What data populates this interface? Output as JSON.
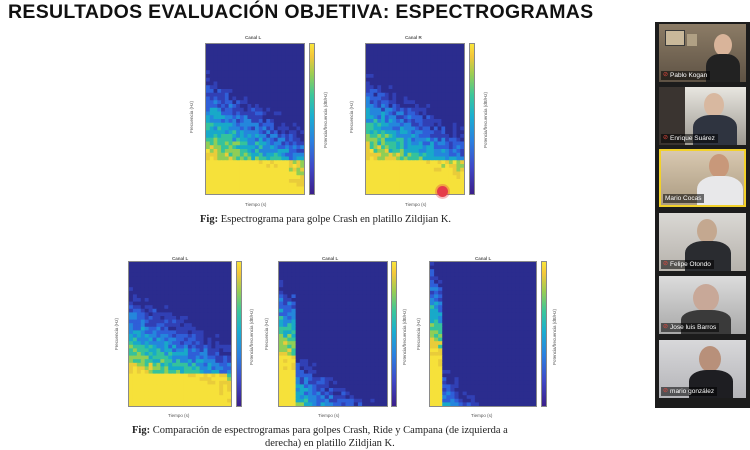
{
  "slide": {
    "title": "RESULTADOS EVALUACIÓN OBJETIVA: ESPECTROGRAMAS",
    "fig1": {
      "caption_bold": "Fig:",
      "caption_text": " Espectrograma para golpe Crash en platillo Zildjian K.",
      "plots": [
        {
          "title": "Canal L",
          "xlabel": "Tiempo (s)",
          "ylabel": "Frecuencia (Hz)",
          "clabel": "Potencia/frecuencia (dB/Hz)"
        },
        {
          "title": "Canal R",
          "xlabel": "Tiempo (s)",
          "ylabel": "Frecuencia (Hz)",
          "clabel": "Potencia/frecuencia (dB/Hz)"
        }
      ]
    },
    "fig2": {
      "caption_bold": "Fig:",
      "caption_line1": " Comparación de espectrogramas para golpes Crash, Ride y Campana (de izquierda a",
      "caption_line2": "derecha) en platillo Zildjian K.",
      "plots": [
        {
          "title": "Canal L",
          "xlabel": "Tiempo (s)",
          "ylabel": "Frecuencia (Hz)",
          "clabel": "Potencia/frecuencia (dB/Hz)"
        },
        {
          "title": "Canal L",
          "xlabel": "Tiempo (s)",
          "ylabel": "Frecuencia (Hz)",
          "clabel": "Potencia/frecuencia (dB/Hz)"
        },
        {
          "title": "Canal L",
          "xlabel": "Tiempo (s)",
          "ylabel": "Frecuencia (Hz)",
          "clabel": "Potencia/frecuencia (dB/Hz)"
        }
      ]
    },
    "yticks_small": [
      "16",
      "14",
      "12",
      "10",
      "8",
      "6",
      "4",
      "2"
    ],
    "xticks_small": [
      "0.5",
      "1",
      "1.5",
      "2",
      "2.5",
      "3",
      "3.5",
      "4",
      "4.5"
    ],
    "cticks_small": [
      "-20",
      "-40",
      "-60",
      "-80",
      "-100",
      "-120",
      "-140"
    ]
  },
  "participants": [
    {
      "name": "Pablo Kogan",
      "muted": true,
      "active": false
    },
    {
      "name": "Enrique Suárez",
      "muted": true,
      "active": false
    },
    {
      "name": "Mario Cocas",
      "muted": false,
      "active": true
    },
    {
      "name": "Felipe Otondo",
      "muted": true,
      "active": false
    },
    {
      "name": "Jose luis Barros",
      "muted": true,
      "active": false
    },
    {
      "name": "mario gonzález",
      "muted": true,
      "active": false
    }
  ],
  "colors": {
    "active_border": "#f2d12a",
    "mic_muted": "#e0463c",
    "cursor_highlight": "#e53b4a"
  }
}
